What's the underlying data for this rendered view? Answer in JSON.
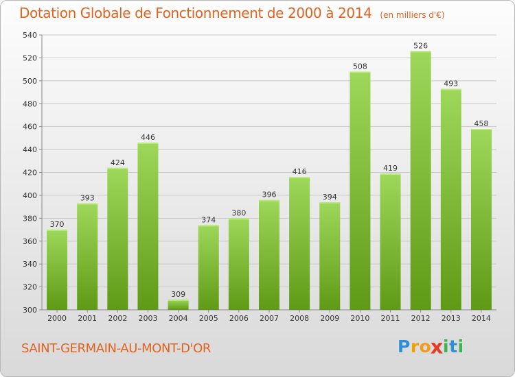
{
  "title": "Dotation Globale de Fonctionnement de 2000 à 2014",
  "unit_note": "(en milliers d'€)",
  "commune": "SAINT-GERMAIN-AU-MONT-D'OR",
  "logo": {
    "letters": [
      "P",
      "r",
      "o",
      "x",
      "i",
      "t",
      "i"
    ]
  },
  "colors": {
    "accent": "#e0631f",
    "bar_top": "#9dd85a",
    "bar_bottom": "#5f9a16",
    "grid": "#c8c8c8"
  },
  "chart_data": {
    "type": "bar",
    "title": "Dotation Globale de Fonctionnement de 2000 à 2014",
    "xlabel": "",
    "ylabel": "",
    "ylim": [
      300,
      540
    ],
    "yticks": [
      300,
      320,
      340,
      360,
      380,
      400,
      420,
      440,
      460,
      480,
      500,
      520,
      540
    ],
    "grid": true,
    "categories": [
      "2000",
      "2001",
      "2002",
      "2003",
      "2004",
      "2005",
      "2006",
      "2007",
      "2008",
      "2009",
      "2010",
      "2011",
      "2012",
      "2013",
      "2014"
    ],
    "values": [
      370,
      393,
      424,
      446,
      309,
      374,
      380,
      396,
      416,
      394,
      508,
      419,
      526,
      493,
      458
    ]
  }
}
